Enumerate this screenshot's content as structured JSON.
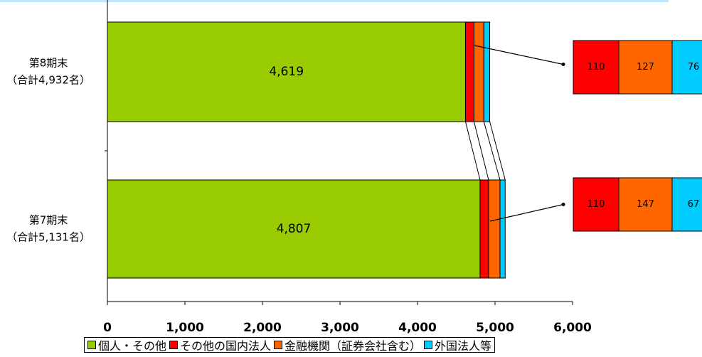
{
  "chart_data": {
    "type": "bar",
    "orientation": "horizontal",
    "stacked": true,
    "categories": [
      {
        "line1": "第8期末",
        "line2": "（合計4,932名）"
      },
      {
        "line1": "第7期末",
        "line2": "（合計5,131名）"
      }
    ],
    "series": [
      {
        "name": "個人・その他",
        "color": "#99CC00",
        "values": [
          4619,
          4807
        ]
      },
      {
        "name": "その他の国内法人",
        "color": "#FF0000",
        "values": [
          110,
          110
        ]
      },
      {
        "name": "金融機関（証券会社含む）",
        "color": "#FF6600",
        "values": [
          127,
          147
        ]
      },
      {
        "name": "外国法人等",
        "color": "#00CCFF",
        "values": [
          76,
          67
        ]
      }
    ],
    "inside_labels": [
      "4,619",
      "4,807"
    ],
    "detail_boxes": [
      {
        "labels": [
          "110",
          "127",
          "76"
        ]
      },
      {
        "labels": [
          "110",
          "147",
          "67"
        ]
      }
    ],
    "x_ticks": [
      "0",
      "1,000",
      "2,000",
      "3,000",
      "4,000",
      "5,000",
      "6,000"
    ],
    "xlim": [
      0,
      6000
    ],
    "grid": false,
    "legend_position": "bottom"
  }
}
